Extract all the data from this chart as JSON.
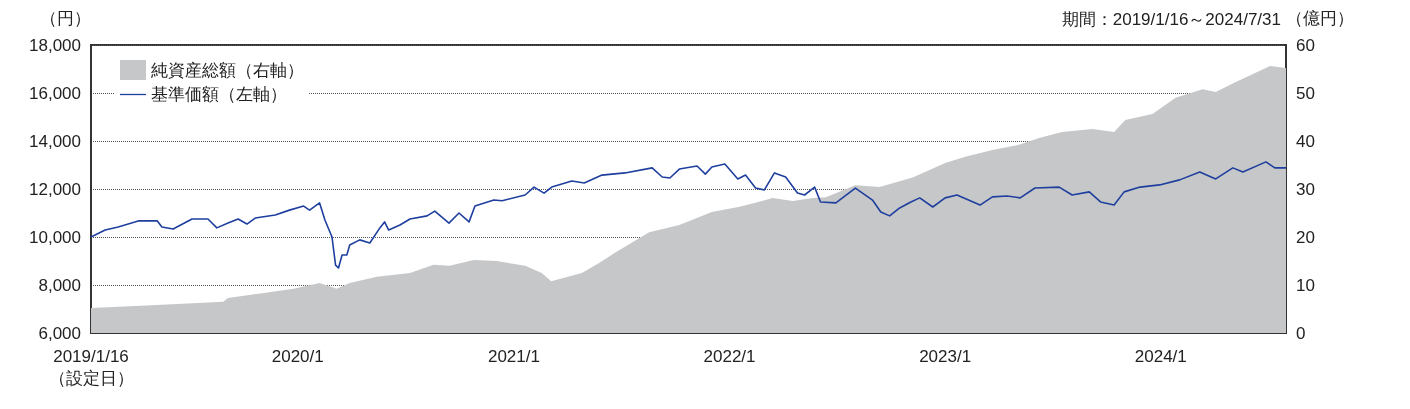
{
  "chart_data": {
    "type": "line",
    "subtitle": "期間：2019/1/16～2024/7/31",
    "ylabel": "（円）",
    "y2label": "（億円）",
    "xlim": [
      "2019-01-16",
      "2024-07-31"
    ],
    "xticks": [
      {
        "value": "2019-01-16",
        "label": "2019/1/16\n（設定日）"
      },
      {
        "value": "2020-01-01",
        "label": "2020/1"
      },
      {
        "value": "2021-01-01",
        "label": "2021/1"
      },
      {
        "value": "2022-01-01",
        "label": "2022/1"
      },
      {
        "value": "2023-01-01",
        "label": "2023/1"
      },
      {
        "value": "2024-01-01",
        "label": "2024/1"
      }
    ],
    "ylim": [
      6000,
      18000
    ],
    "yticks": [
      {
        "value": 6000,
        "label": "6,000"
      },
      {
        "value": 8000,
        "label": "8,000"
      },
      {
        "value": 10000,
        "label": "10,000"
      },
      {
        "value": 12000,
        "label": "12,000"
      },
      {
        "value": 14000,
        "label": "14,000"
      },
      {
        "value": 16000,
        "label": "16,000"
      },
      {
        "value": 18000,
        "label": "18,000"
      }
    ],
    "y2lim": [
      0,
      60
    ],
    "y2ticks": [
      0,
      10,
      20,
      30,
      40,
      50,
      60
    ],
    "grid": "y",
    "legend": "top left",
    "series": [
      {
        "name": "純資産総額（右軸）",
        "type": "area",
        "axis": "y2",
        "color": "#c6c7c9",
        "x": [
          "2019-01-16",
          "2019-04-29",
          "2019-08-28",
          "2019-09-05",
          "2019-11-02",
          "2019-12-25",
          "2020-02-07",
          "2020-03-07",
          "2020-03-29",
          "2020-05-14",
          "2020-07-09",
          "2020-08-18",
          "2020-09-14",
          "2020-10-25",
          "2020-12-03",
          "2021-01-20",
          "2021-02-17",
          "2021-03-05",
          "2021-04-26",
          "2021-05-25",
          "2021-06-21",
          "2021-08-18",
          "2021-10-08",
          "2021-12-02",
          "2022-01-18",
          "2022-03-15",
          "2022-04-18",
          "2022-05-22",
          "2022-06-13",
          "2022-08-02",
          "2022-09-12",
          "2022-11-07",
          "2023-01-01",
          "2023-02-04",
          "2023-03-22",
          "2023-05-06",
          "2023-06-09",
          "2023-07-18",
          "2023-09-07",
          "2023-10-14",
          "2023-11-02",
          "2023-12-18",
          "2024-01-26",
          "2024-03-12",
          "2024-04-03",
          "2024-05-07",
          "2024-07-04",
          "2024-07-31"
        ],
        "values": [
          5.2,
          5.8,
          6.5,
          7.3,
          8.3,
          9.2,
          10.4,
          9.2,
          10.4,
          11.7,
          12.5,
          14.2,
          14.0,
          15.2,
          15.0,
          14.0,
          12.5,
          10.8,
          12.5,
          14.6,
          16.7,
          21.0,
          22.5,
          25.2,
          26.3,
          28.1,
          27.5,
          28.1,
          28.3,
          30.8,
          30.4,
          32.4,
          35.4,
          36.7,
          38.1,
          39.2,
          40.6,
          41.9,
          42.5,
          41.9,
          44.4,
          45.6,
          49.0,
          50.8,
          50.2,
          52.3,
          55.6,
          55.2
        ]
      },
      {
        "name": "基準価額（左軸）",
        "type": "line",
        "color": "#1f3f9e",
        "x": [
          "2019-01-16",
          "2019-02-09",
          "2019-03-03",
          "2019-04-06",
          "2019-05-08",
          "2019-05-16",
          "2019-06-04",
          "2019-07-06",
          "2019-08-02",
          "2019-08-17",
          "2019-09-05",
          "2019-09-22",
          "2019-10-07",
          "2019-10-21",
          "2019-11-24",
          "2019-12-18",
          "2020-01-11",
          "2020-01-21",
          "2020-02-07",
          "2020-02-16",
          "2020-02-28",
          "2020-03-05",
          "2020-03-10",
          "2020-03-16",
          "2020-03-24",
          "2020-03-29",
          "2020-04-15",
          "2020-05-02",
          "2020-05-19",
          "2020-05-27",
          "2020-06-03",
          "2020-06-22",
          "2020-07-09",
          "2020-08-07",
          "2020-08-20",
          "2020-09-13",
          "2020-09-30",
          "2020-10-17",
          "2020-10-27",
          "2020-11-28",
          "2020-12-12",
          "2021-01-20",
          "2021-02-04",
          "2021-02-21",
          "2021-03-06",
          "2021-04-09",
          "2021-04-30",
          "2021-05-30",
          "2021-07-08",
          "2021-08-23",
          "2021-09-09",
          "2021-09-22",
          "2021-10-08",
          "2021-11-07",
          "2021-11-21",
          "2021-12-02",
          "2021-12-24",
          "2022-01-15",
          "2022-01-28",
          "2022-02-14",
          "2022-03-01",
          "2022-03-18",
          "2022-04-06",
          "2022-04-26",
          "2022-05-08",
          "2022-05-25",
          "2022-06-04",
          "2022-06-30",
          "2022-08-02",
          "2022-08-31",
          "2022-09-14",
          "2022-09-29",
          "2022-10-16",
          "2022-11-04",
          "2022-11-19",
          "2022-12-11",
          "2023-01-01",
          "2023-01-21",
          "2023-03-01",
          "2023-03-22",
          "2023-04-16",
          "2023-05-08",
          "2023-06-02",
          "2023-07-13",
          "2023-08-04",
          "2023-09-02",
          "2023-09-21",
          "2023-10-14",
          "2023-10-31",
          "2023-11-27",
          "2023-12-30",
          "2024-02-02",
          "2024-03-07",
          "2024-04-03",
          "2024-05-02",
          "2024-05-19",
          "2024-06-27",
          "2024-07-12",
          "2024-07-31"
        ],
        "values": [
          10000,
          10290,
          10420,
          10670,
          10680,
          10420,
          10330,
          10750,
          10750,
          10380,
          10580,
          10750,
          10540,
          10790,
          10920,
          11120,
          11290,
          11120,
          11420,
          10710,
          10000,
          8830,
          8710,
          9250,
          9250,
          9670,
          9880,
          9750,
          10380,
          10630,
          10290,
          10500,
          10750,
          10880,
          11080,
          10580,
          11000,
          10630,
          11290,
          11540,
          11510,
          11750,
          12080,
          11830,
          12080,
          12330,
          12250,
          12580,
          12670,
          12880,
          12500,
          12460,
          12830,
          12960,
          12620,
          12920,
          13040,
          12420,
          12580,
          12040,
          11960,
          12670,
          12500,
          11830,
          11750,
          12080,
          11460,
          11420,
          12040,
          11540,
          11040,
          10880,
          11210,
          11460,
          11630,
          11250,
          11630,
          11750,
          11330,
          11670,
          11710,
          11630,
          12040,
          12080,
          11750,
          11880,
          11460,
          11330,
          11880,
          12080,
          12170,
          12380,
          12710,
          12420,
          12880,
          12710,
          13130,
          12880,
          12880
        ]
      }
    ]
  }
}
